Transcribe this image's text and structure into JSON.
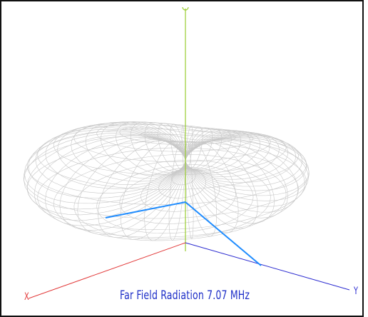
{
  "title": "Far Field Radiation 7.07 MHz",
  "axes": {
    "x_label": "X",
    "y_label": "Y",
    "x_color": "#e23a3a",
    "y_color": "#2b2bd0",
    "z_color": "#9acd32",
    "local_axes_color": "#1e8cff"
  },
  "pattern": {
    "mesh_color": "#c8c8c8",
    "shape": "cardioid-torus",
    "grid": "wireframe"
  }
}
